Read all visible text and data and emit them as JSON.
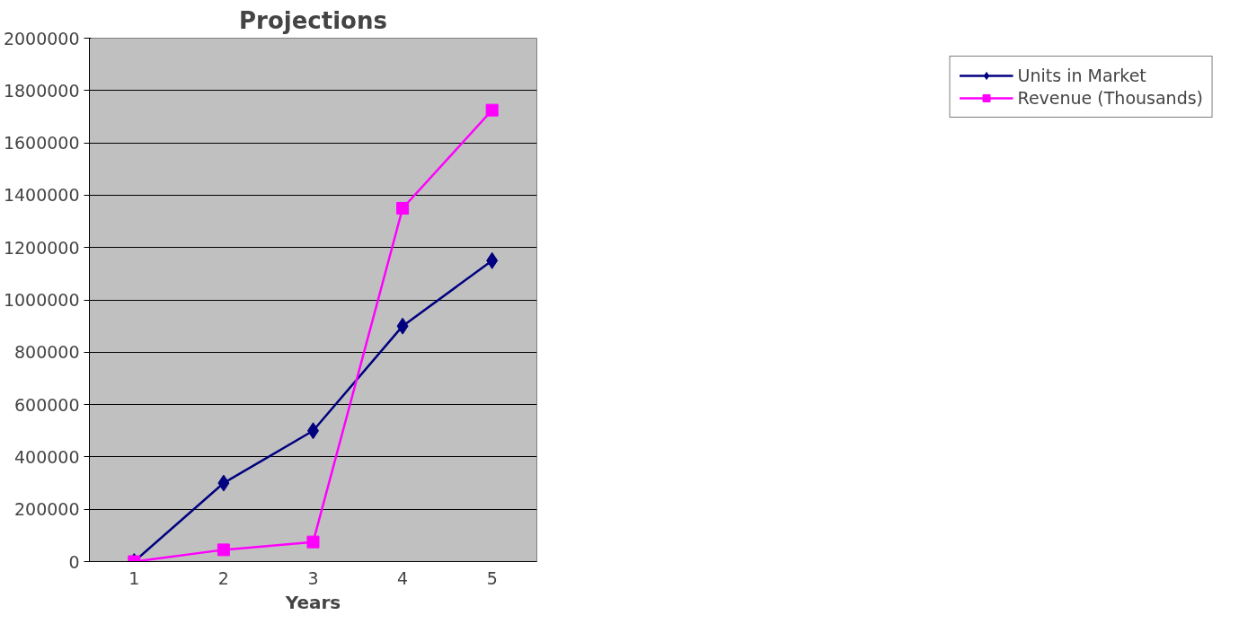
{
  "chart_data": {
    "type": "line",
    "title": "Projections",
    "xlabel": "Years",
    "categories": [
      "1",
      "2",
      "3",
      "4",
      "5"
    ],
    "series": [
      {
        "name": "Units in Market",
        "color": "#000080",
        "marker": "diamond",
        "values": [
          0,
          300000,
          500000,
          900000,
          1150000
        ]
      },
      {
        "name": "Revenue (Thousands)",
        "color": "#ff00ff",
        "marker": "square",
        "values": [
          0,
          45000,
          75000,
          1350000,
          1725000
        ]
      }
    ],
    "ylim": [
      0,
      2000000
    ],
    "yticks": [
      0,
      200000,
      400000,
      600000,
      800000,
      1000000,
      1200000,
      1400000,
      1600000,
      1800000,
      2000000
    ],
    "grid": "y",
    "legend": "right",
    "line_style": "solid"
  }
}
